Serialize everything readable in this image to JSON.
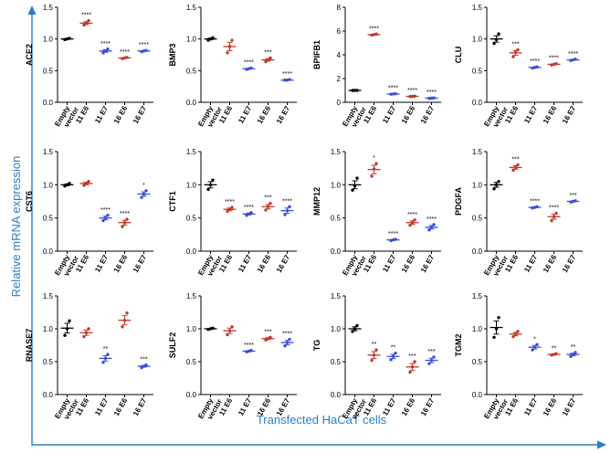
{
  "y_axis_title": "Relative mRNA expression",
  "x_axis_title": "Transfected HaCaT cells",
  "colors": {
    "black": "#000000",
    "red": "#c0392b",
    "blue": "#3a4fd6",
    "accent": "#2b7ec4"
  },
  "chart_data": [
    {
      "type": "scatter",
      "gene": "ACE2",
      "ylim": [
        0,
        1.5
      ],
      "ticks": [
        "0.0",
        "0.5",
        "1.0",
        "1.5"
      ],
      "categories": [
        "Empty vector",
        "11 E6",
        "11 E7",
        "16 E6",
        "16 E7"
      ],
      "means": [
        1.0,
        1.25,
        0.81,
        0.7,
        0.81
      ],
      "points": [
        [
          0.99,
          1.0,
          1.01
        ],
        [
          1.22,
          1.25,
          1.29
        ],
        [
          0.78,
          0.81,
          0.84
        ],
        [
          0.69,
          0.7,
          0.71
        ],
        [
          0.8,
          0.81,
          0.82
        ]
      ],
      "sig": [
        "",
        "****",
        "****",
        "****",
        "****"
      ]
    },
    {
      "type": "scatter",
      "gene": "BMP3",
      "ylim": [
        0,
        1.5
      ],
      "ticks": [
        "0.0",
        "0.5",
        "1.0",
        "1.5"
      ],
      "categories": [
        "Empty vector",
        "11 E6",
        "11 E7",
        "16 E6",
        "16 E7"
      ],
      "means": [
        1.0,
        0.88,
        0.53,
        0.67,
        0.35
      ],
      "points": [
        [
          0.98,
          1.0,
          1.02
        ],
        [
          0.78,
          0.88,
          0.98
        ],
        [
          0.52,
          0.53,
          0.54
        ],
        [
          0.64,
          0.67,
          0.7
        ],
        [
          0.35,
          0.35,
          0.36
        ]
      ],
      "sig": [
        "",
        "",
        "****",
        "***",
        "****"
      ]
    },
    {
      "type": "scatter",
      "gene": "BPIFB1",
      "ylim": [
        0,
        8
      ],
      "ticks": [
        "0",
        "2",
        "4",
        "6",
        "8"
      ],
      "categories": [
        "Empty vector",
        "11 E6",
        "11 E7",
        "16 E6",
        "16 E7"
      ],
      "means": [
        1.0,
        5.7,
        0.7,
        0.5,
        0.35
      ],
      "points": [
        [
          1.0,
          1.0,
          1.0
        ],
        [
          5.65,
          5.7,
          5.75
        ],
        [
          0.68,
          0.7,
          0.72
        ],
        [
          0.48,
          0.5,
          0.52
        ],
        [
          0.33,
          0.35,
          0.37
        ]
      ],
      "sig": [
        "",
        "****",
        "****",
        "****",
        "****"
      ]
    },
    {
      "type": "scatter",
      "gene": "CLU",
      "ylim": [
        0,
        1.5
      ],
      "ticks": [
        "0.0",
        "0.5",
        "1.0",
        "1.5"
      ],
      "categories": [
        "Empty vector",
        "11 E6",
        "11 E7",
        "16 E6",
        "16 E7"
      ],
      "means": [
        1.0,
        0.78,
        0.55,
        0.6,
        0.67
      ],
      "points": [
        [
          0.93,
          0.99,
          1.08
        ],
        [
          0.72,
          0.79,
          0.83
        ],
        [
          0.54,
          0.55,
          0.56
        ],
        [
          0.59,
          0.6,
          0.61
        ],
        [
          0.66,
          0.67,
          0.68
        ]
      ],
      "sig": [
        "",
        "***",
        "****",
        "****",
        "****"
      ]
    },
    {
      "type": "scatter",
      "gene": "CST6",
      "ylim": [
        0,
        1.5
      ],
      "ticks": [
        "0.0",
        "0.5",
        "1.0",
        "1.5"
      ],
      "categories": [
        "Empty vector",
        "11 E6",
        "11 E7",
        "16 E6",
        "16 E7"
      ],
      "means": [
        1.0,
        1.02,
        0.5,
        0.43,
        0.86
      ],
      "points": [
        [
          0.98,
          1.0,
          1.02
        ],
        [
          0.99,
          1.02,
          1.05
        ],
        [
          0.46,
          0.5,
          0.54
        ],
        [
          0.37,
          0.43,
          0.48
        ],
        [
          0.81,
          0.86,
          0.91
        ]
      ],
      "sig": [
        "",
        "",
        "****",
        "****",
        "*"
      ]
    },
    {
      "type": "scatter",
      "gene": "CTF1",
      "ylim": [
        0,
        1.5
      ],
      "ticks": [
        "0.0",
        "0.5",
        "1.0",
        "1.5"
      ],
      "categories": [
        "Empty vector",
        "11 E6",
        "11 E7",
        "16 E6",
        "16 E7"
      ],
      "means": [
        1.0,
        0.63,
        0.56,
        0.67,
        0.61
      ],
      "points": [
        [
          0.93,
          1.0,
          1.07
        ],
        [
          0.6,
          0.63,
          0.66
        ],
        [
          0.54,
          0.56,
          0.58
        ],
        [
          0.62,
          0.67,
          0.72
        ],
        [
          0.55,
          0.61,
          0.67
        ]
      ],
      "sig": [
        "",
        "****",
        "****",
        "***",
        "****"
      ]
    },
    {
      "type": "scatter",
      "gene": "MMP12",
      "ylim": [
        0,
        1.5
      ],
      "ticks": [
        "0.0",
        "0.5",
        "1.0",
        "1.5"
      ],
      "categories": [
        "Empty vector",
        "11 E6",
        "11 E7",
        "16 E6",
        "16 E7"
      ],
      "means": [
        1.0,
        1.23,
        0.17,
        0.43,
        0.36
      ],
      "points": [
        [
          0.92,
          0.98,
          1.1
        ],
        [
          1.13,
          1.24,
          1.32
        ],
        [
          0.16,
          0.17,
          0.18
        ],
        [
          0.39,
          0.43,
          0.47
        ],
        [
          0.32,
          0.36,
          0.4
        ]
      ],
      "sig": [
        "",
        "*",
        "****",
        "****",
        "****"
      ]
    },
    {
      "type": "scatter",
      "gene": "PDGFA",
      "ylim": [
        0,
        1.5
      ],
      "ticks": [
        "0.0",
        "0.5",
        "1.0",
        "1.5"
      ],
      "categories": [
        "Empty vector",
        "11 E6",
        "11 E7",
        "16 E6",
        "16 E7"
      ],
      "means": [
        1.0,
        1.26,
        0.66,
        0.52,
        0.75
      ],
      "points": [
        [
          0.94,
          1.0,
          1.05
        ],
        [
          1.22,
          1.26,
          1.3
        ],
        [
          0.65,
          0.66,
          0.67
        ],
        [
          0.46,
          0.52,
          0.57
        ],
        [
          0.74,
          0.75,
          0.76
        ]
      ],
      "sig": [
        "",
        "***",
        "****",
        "****",
        "***"
      ]
    },
    {
      "type": "scatter",
      "gene": "RNASE7",
      "ylim": [
        0,
        1.5
      ],
      "ticks": [
        "0.0",
        "0.5",
        "1.0",
        "1.5"
      ],
      "categories": [
        "Empty vector",
        "11 E6",
        "11 E7",
        "16 E6",
        "16 E7"
      ],
      "means": [
        1.01,
        0.94,
        0.55,
        1.13,
        0.43
      ],
      "points": [
        [
          0.9,
          1.0,
          1.12
        ],
        [
          0.88,
          0.94,
          1.0
        ],
        [
          0.49,
          0.55,
          0.61
        ],
        [
          1.03,
          1.13,
          1.24
        ],
        [
          0.41,
          0.43,
          0.45
        ]
      ],
      "sig": [
        "",
        "",
        "**",
        "",
        "***"
      ]
    },
    {
      "type": "scatter",
      "gene": "SULF2",
      "ylim": [
        0,
        1.5
      ],
      "ticks": [
        "0.0",
        "0.5",
        "1.0",
        "1.5"
      ],
      "categories": [
        "Empty vector",
        "11 E6",
        "11 E7",
        "16 E6",
        "16 E7"
      ],
      "means": [
        1.0,
        0.97,
        0.66,
        0.85,
        0.79
      ],
      "points": [
        [
          0.99,
          1.0,
          1.01
        ],
        [
          0.91,
          0.97,
          1.03
        ],
        [
          0.65,
          0.66,
          0.67
        ],
        [
          0.83,
          0.85,
          0.87
        ],
        [
          0.74,
          0.79,
          0.84
        ]
      ],
      "sig": [
        "",
        "",
        "****",
        "***",
        "****"
      ]
    },
    {
      "type": "scatter",
      "gene": "TG",
      "ylim": [
        0,
        1.5
      ],
      "ticks": [
        "0.0",
        "0.5",
        "1.0",
        "1.5"
      ],
      "categories": [
        "Empty vector",
        "11 E6",
        "11 E7",
        "16 E6",
        "16 E7"
      ],
      "means": [
        1.0,
        0.6,
        0.58,
        0.42,
        0.52
      ],
      "points": [
        [
          0.96,
          1.0,
          1.05
        ],
        [
          0.52,
          0.6,
          0.68
        ],
        [
          0.53,
          0.58,
          0.63
        ],
        [
          0.34,
          0.42,
          0.5
        ],
        [
          0.47,
          0.52,
          0.57
        ]
      ],
      "sig": [
        "",
        "**",
        "**",
        "***",
        "***"
      ]
    },
    {
      "type": "scatter",
      "gene": "TGM2",
      "ylim": [
        0,
        1.5
      ],
      "ticks": [
        "0.0",
        "0.5",
        "1.0",
        "1.5"
      ],
      "categories": [
        "Empty vector",
        "11 E6",
        "11 E7",
        "16 E6",
        "16 E7"
      ],
      "means": [
        1.02,
        0.92,
        0.72,
        0.61,
        0.61
      ],
      "points": [
        [
          0.87,
          1.0,
          1.17
        ],
        [
          0.88,
          0.92,
          0.96
        ],
        [
          0.68,
          0.72,
          0.76
        ],
        [
          0.6,
          0.61,
          0.62
        ],
        [
          0.58,
          0.61,
          0.64
        ]
      ],
      "sig": [
        "",
        "",
        "*",
        "**",
        "**"
      ]
    }
  ]
}
